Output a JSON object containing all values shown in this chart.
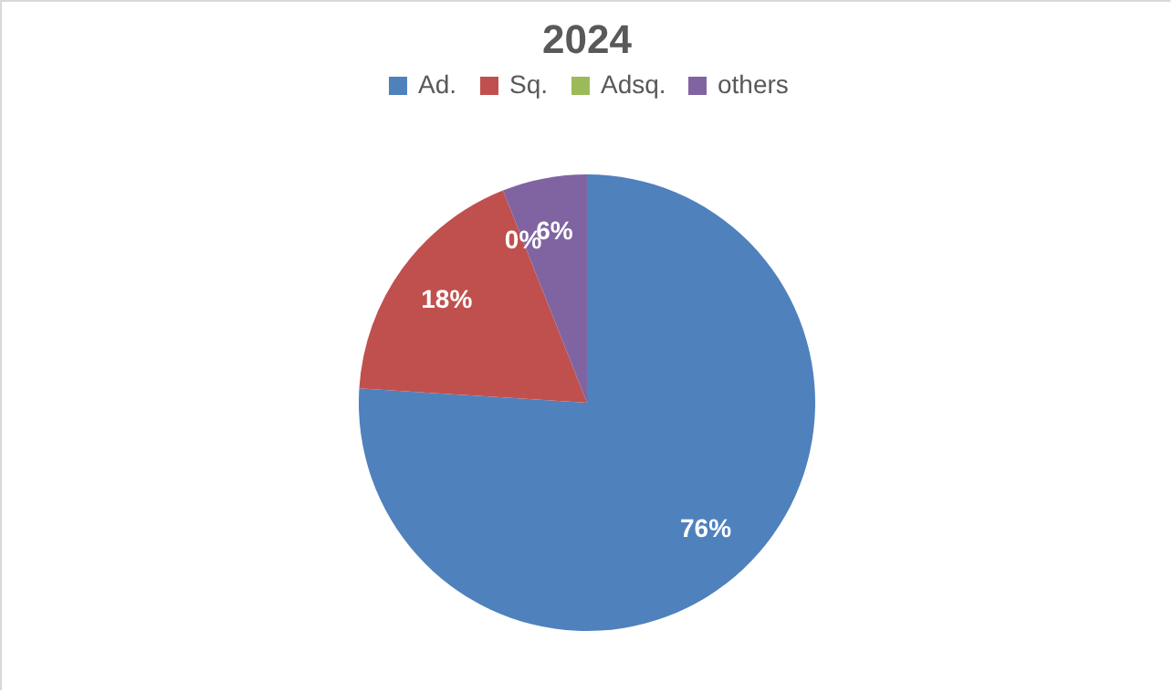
{
  "chart_data": {
    "type": "pie",
    "title": "2024",
    "categories": [
      "Ad.",
      "Sq.",
      "Adsq.",
      "others"
    ],
    "values": [
      76,
      18,
      0,
      6
    ],
    "colors": [
      "#4f81bd",
      "#c0504d",
      "#9bbb59",
      "#8064a2"
    ],
    "value_labels": [
      "76%",
      "18%",
      "0%",
      "6%"
    ],
    "legend": "top"
  }
}
